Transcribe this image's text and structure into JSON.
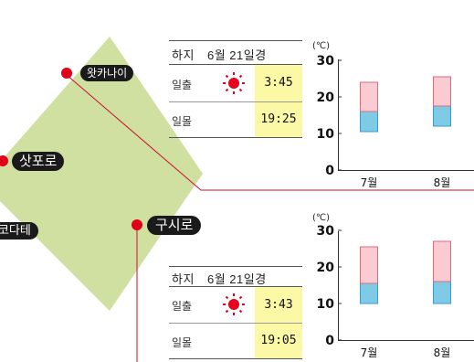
{
  "map": {
    "cities": [
      {
        "id": "wakkanai",
        "name": "왓카나이"
      },
      {
        "id": "sapporo",
        "name": "삿포로"
      },
      {
        "id": "hakodate",
        "name": "하코다테"
      },
      {
        "id": "kushiro",
        "name": "구시로"
      }
    ],
    "colors": {
      "land": "#cfe0a0",
      "pin": "#e0001a",
      "line": "#c8102e",
      "pill": "#1a1a1a"
    }
  },
  "panels": [
    {
      "id": "top",
      "solstice_label": "하지",
      "date_label": "6월 21일경",
      "sunrise_label": "일출",
      "sunrise_time": "3:45",
      "sunset_label": "일몰",
      "sunset_time": "19:25",
      "unit": "(℃)",
      "yticks": [
        "30",
        "20",
        "10",
        "0"
      ],
      "chart_data": {
        "type": "bar",
        "categories": [
          "7월",
          "8월"
        ],
        "series": [
          {
            "values": [
              [
                10.5,
                16
              ],
              [
                12,
                17.5
              ]
            ]
          },
          {
            "values": [
              [
                16,
                24
              ],
              [
                17.5,
                25.5
              ]
            ]
          }
        ],
        "ylim": [
          0,
          30
        ],
        "colors": {
          "low": "#7fcbe6",
          "high": "#f9ccd3",
          "edge_low": "#2f9fd0",
          "edge_high": "#e06a7c"
        }
      }
    },
    {
      "id": "bottom",
      "solstice_label": "하지",
      "date_label": "6월 21일경",
      "sunrise_label": "일출",
      "sunrise_time": "3:43",
      "sunset_label": "일몰",
      "sunset_time": "19:05",
      "unit": "(℃)",
      "yticks": [
        "30",
        "20",
        "10",
        "0"
      ],
      "chart_data": {
        "type": "bar",
        "categories": [
          "7월",
          "8월"
        ],
        "series": [
          {
            "values": [
              [
                10,
                15.5
              ],
              [
                10,
                16
              ]
            ]
          },
          {
            "values": [
              [
                15.5,
                25.5
              ],
              [
                16,
                27
              ]
            ]
          }
        ],
        "ylim": [
          0,
          30
        ],
        "colors": {
          "low": "#7fcbe6",
          "high": "#f9ccd3",
          "edge_low": "#2f9fd0",
          "edge_high": "#e06a7c"
        }
      }
    }
  ],
  "icons": {
    "sun": "sun-icon",
    "moon": "crescent-moon-icon",
    "sun_color": "#e8001c",
    "moon_color": "#1f2f9e"
  }
}
